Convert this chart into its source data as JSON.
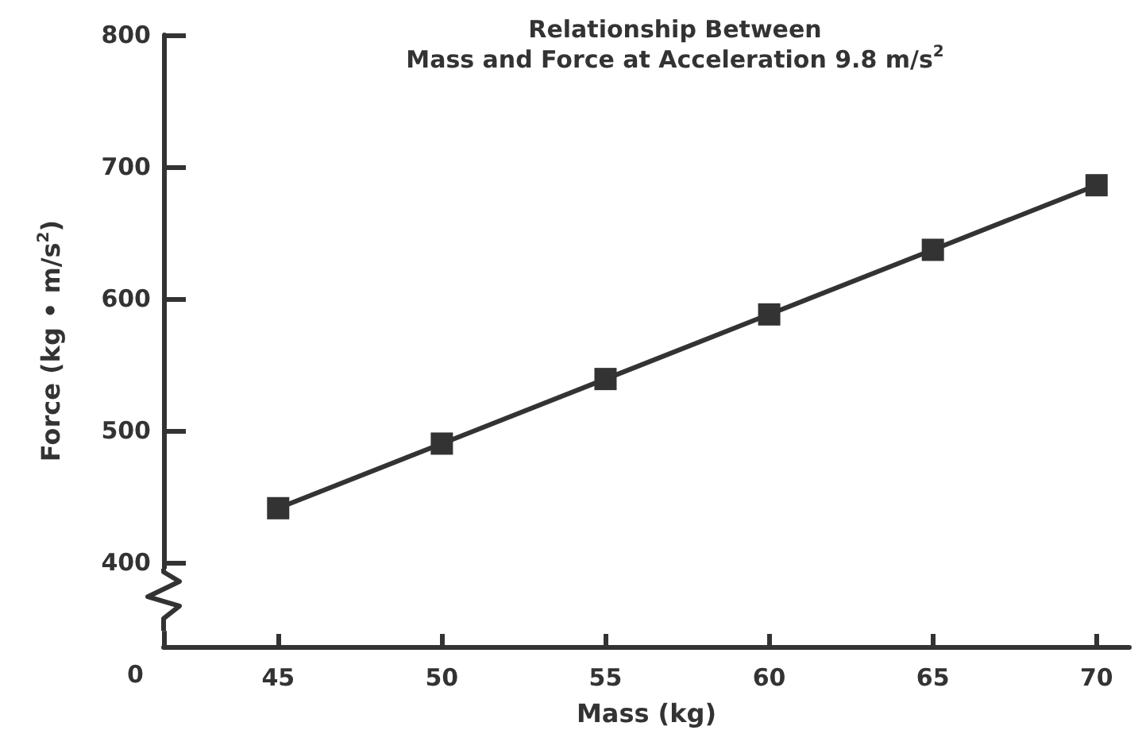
{
  "chart_data": {
    "type": "line",
    "title": "Relationship Between\nMass and Force at Acceleration 9.8 m/s$^{2}$",
    "xlabel": "Mass (kg)",
    "ylabel": "Force (kg • m/s$^{2}$)",
    "x": [
      45,
      50,
      55,
      60,
      65,
      70
    ],
    "series": [
      {
        "color": "#333333",
        "values": [
          441,
          490,
          539,
          588,
          637,
          686
        ]
      }
    ],
    "xlim": [
      41.5,
      71
    ],
    "xticks": [
      45,
      50,
      55,
      60,
      65,
      70
    ],
    "annotations": [
      "0"
    ],
    "ylim": [
      336,
      800
    ],
    "yticks": [
      400,
      500,
      600,
      700,
      800
    ],
    "grid": false,
    "marker": "square",
    "line_style": "solid"
  }
}
